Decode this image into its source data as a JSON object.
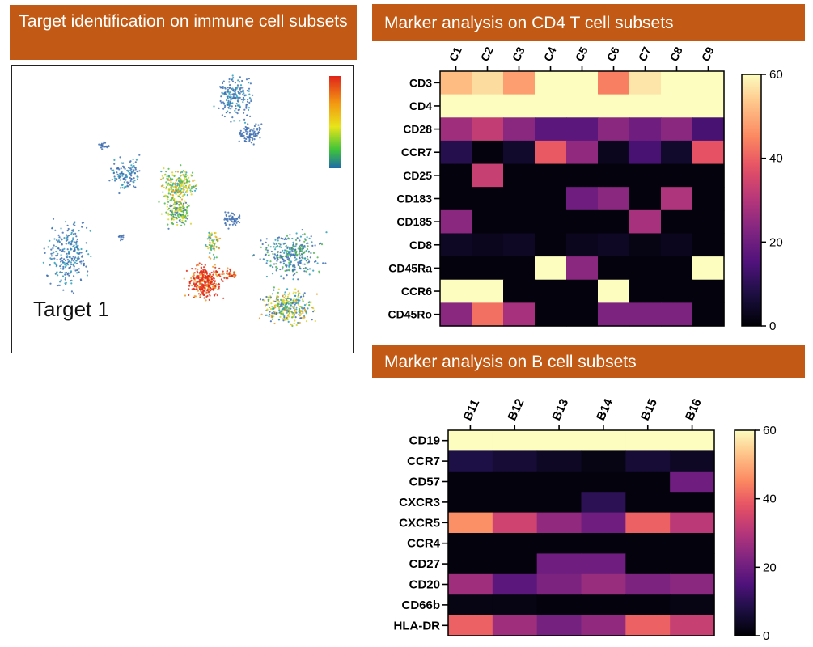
{
  "panels": {
    "left_title": "Target identification on immune cell subsets",
    "cd4_title": "Marker analysis on CD4 T cell subsets",
    "b_title": "Marker analysis on B cell subsets",
    "umap_label": "Target 1"
  },
  "colors": {
    "banner": "#c25a15",
    "banner_text": "#ffffff",
    "colormap": "magma"
  },
  "chart_data": [
    {
      "type": "heatmap",
      "title": "Marker analysis on CD4 T cell subsets",
      "columns": [
        "C1",
        "C2",
        "C3",
        "C4",
        "C5",
        "C6",
        "C7",
        "C8",
        "C9"
      ],
      "rows": [
        "CD3",
        "CD4",
        "CD28",
        "CCR7",
        "CD25",
        "CD183",
        "CD185",
        "CD8",
        "CD45Ra",
        "CCR6",
        "CD45Ro"
      ],
      "values": [
        [
          52,
          56,
          48,
          60,
          60,
          44,
          57,
          60,
          60
        ],
        [
          60,
          60,
          60,
          60,
          60,
          60,
          60,
          60,
          60
        ],
        [
          27,
          32,
          24,
          17,
          17,
          24,
          20,
          24,
          14
        ],
        [
          9,
          1,
          5,
          39,
          25,
          3,
          14,
          5,
          38
        ],
        [
          1,
          33,
          1,
          1,
          1,
          1,
          1,
          1,
          1
        ],
        [
          1,
          1,
          1,
          1,
          20,
          24,
          1,
          29,
          1
        ],
        [
          24,
          1,
          1,
          1,
          1,
          1,
          28,
          1,
          1
        ],
        [
          4,
          3,
          4,
          1,
          3,
          4,
          2,
          3,
          1
        ],
        [
          1,
          1,
          1,
          60,
          24,
          1,
          1,
          1,
          60
        ],
        [
          60,
          60,
          1,
          1,
          1,
          60,
          1,
          1,
          1
        ],
        [
          24,
          42,
          28,
          1,
          1,
          22,
          22,
          22,
          1
        ]
      ],
      "colorbar": {
        "min": 0,
        "max": 60,
        "ticks": [
          0,
          20,
          40,
          60
        ]
      }
    },
    {
      "type": "heatmap",
      "title": "Marker analysis on B cell subsets",
      "columns": [
        "B11",
        "B12",
        "B13",
        "B14",
        "B15",
        "B16"
      ],
      "rows": [
        "CD19",
        "CCR7",
        "CD57",
        "CXCR3",
        "CXCR5",
        "CCR4",
        "CD27",
        "CD20",
        "CD66b",
        "HLA-DR"
      ],
      "values": [
        [
          60,
          60,
          60,
          60,
          60,
          60
        ],
        [
          8,
          6,
          4,
          2,
          6,
          4
        ],
        [
          1,
          1,
          1,
          1,
          1,
          20
        ],
        [
          1,
          1,
          1,
          10,
          1,
          1
        ],
        [
          46,
          34,
          25,
          20,
          40,
          31
        ],
        [
          1,
          1,
          1,
          1,
          1,
          1
        ],
        [
          1,
          1,
          20,
          20,
          1,
          1
        ],
        [
          27,
          17,
          22,
          26,
          22,
          24
        ],
        [
          2,
          2,
          1,
          1,
          1,
          2
        ],
        [
          40,
          27,
          21,
          25,
          40,
          33
        ]
      ],
      "colorbar": {
        "min": 0,
        "max": 60,
        "ticks": [
          0,
          20,
          40,
          60
        ]
      }
    }
  ]
}
